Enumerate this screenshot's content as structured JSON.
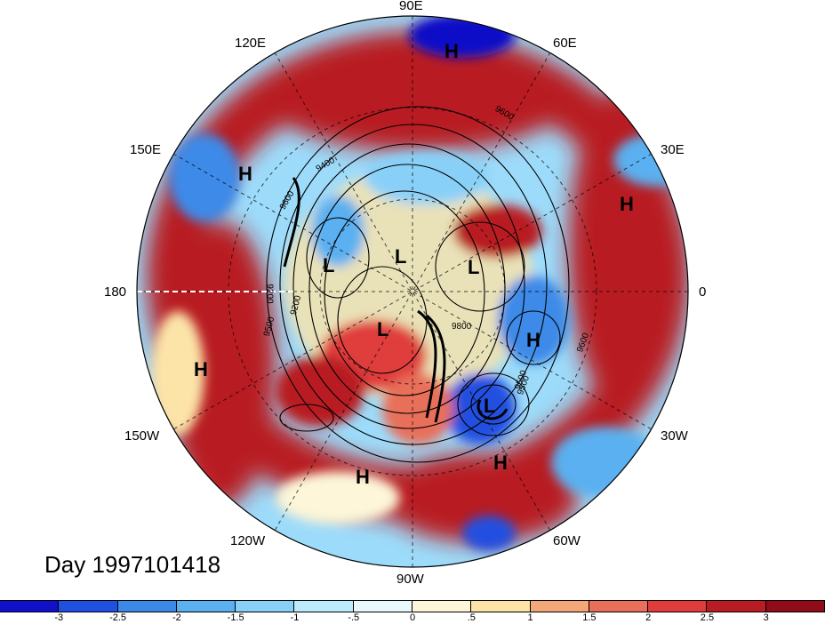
{
  "map": {
    "projection": "polar-stereographic",
    "hemisphere": "northern",
    "longitude_labels": {
      "top": "90E",
      "top_right_1": "60E",
      "top_right_2": "30E",
      "right": "0",
      "bottom_right_1": "30W",
      "bottom_right_2": "60W",
      "bottom": "90W",
      "bottom_left_1": "120W",
      "bottom_left_2": "150W",
      "left": "180",
      "top_left_2": "150E",
      "top_left_1": "120E"
    },
    "pressure_centers": [
      {
        "label": "H",
        "kind": "high"
      },
      {
        "label": "H",
        "kind": "high"
      },
      {
        "label": "H",
        "kind": "high"
      },
      {
        "label": "H",
        "kind": "high"
      },
      {
        "label": "H",
        "kind": "high"
      },
      {
        "label": "H",
        "kind": "high"
      },
      {
        "label": "H",
        "kind": "high"
      },
      {
        "label": "L",
        "kind": "low"
      },
      {
        "label": "L",
        "kind": "low"
      },
      {
        "label": "L",
        "kind": "low"
      },
      {
        "label": "L",
        "kind": "low"
      },
      {
        "label": "L",
        "kind": "low"
      }
    ],
    "contour_labels": [
      "9600",
      "9400",
      "9600",
      "9200",
      "9500",
      "9500",
      "9200",
      "9800",
      "9500",
      "9600"
    ],
    "day_label": "Day 1997101418"
  },
  "colorbar": {
    "colors": [
      "#1010c8",
      "#2050e0",
      "#3c8ae8",
      "#5ab0f0",
      "#88d0f8",
      "#bcebfc",
      "#e8f8fc",
      "#fdf6d8",
      "#fce4a8",
      "#f4a878",
      "#e8705a",
      "#e03c3c",
      "#b81c24",
      "#900c18"
    ],
    "tick_labels": [
      "-3",
      "-2.5",
      "-2",
      "-1.5",
      "-1",
      "-.5",
      "0",
      ".5",
      "1",
      "1.5",
      "2",
      "2.5",
      "3"
    ]
  }
}
